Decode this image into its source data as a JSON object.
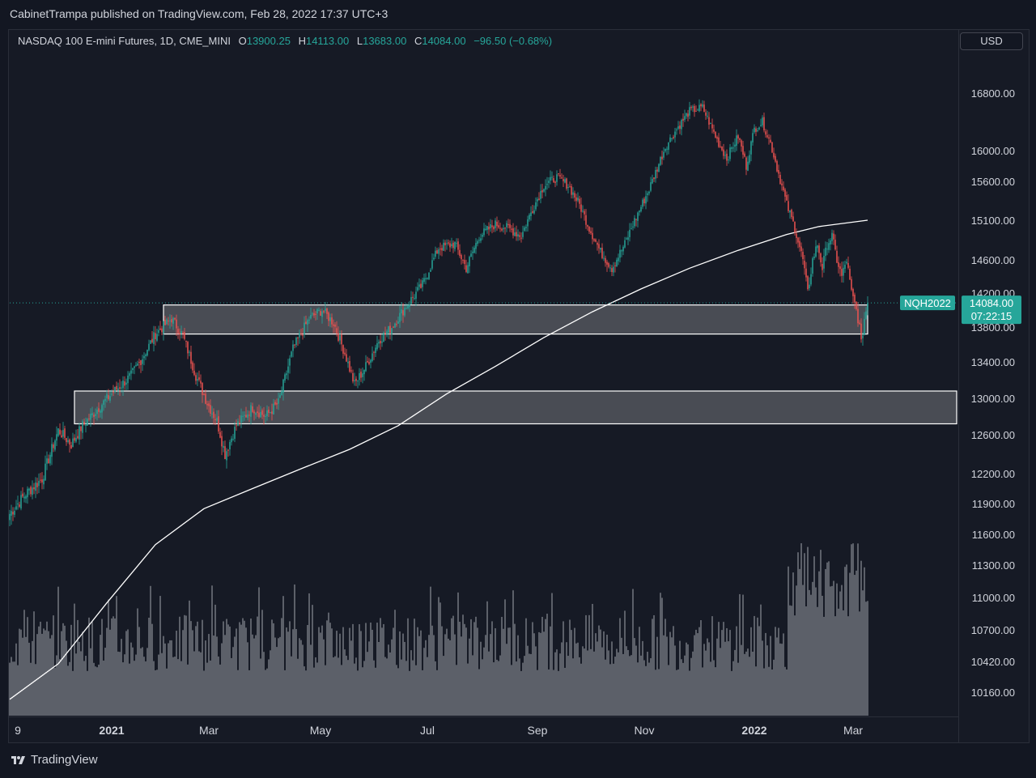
{
  "publisher_line": "CabinetTrampa published on TradingView.com, Feb 28, 2022 17:37 UTC+3",
  "legend": {
    "symbol": "NASDAQ 100 E-mini Futures, 1D, CME_MINI",
    "open_label": "O",
    "open": "13900.25",
    "high_label": "H",
    "high": "14113.00",
    "low_label": "L",
    "low": "13683.00",
    "close_label": "C",
    "close": "14084.00",
    "change": "−96.50 (−0.68%)"
  },
  "currency_button": "USD",
  "brand": "TradingView",
  "price_tag": {
    "ticker": "NQH2022",
    "price": "14084.00",
    "countdown": "07:22:15"
  },
  "colors": {
    "background": "#131722",
    "up": "#26a69a",
    "down": "#ef5350",
    "ma": "#ffffff",
    "zone_fill": "#ffffff",
    "volume": "#b2b5be"
  },
  "chart_data": {
    "type": "candlestick",
    "title": "NASDAQ 100 E-mini Futures, 1D, CME_MINI",
    "y_ticks": [
      "16800.00",
      "16000.00",
      "15600.00",
      "15100.00",
      "14600.00",
      "14200.00",
      "13800.00",
      "13400.00",
      "13000.00",
      "12600.00",
      "12200.00",
      "11900.00",
      "11600.00",
      "11300.00",
      "11000.00",
      "10700.00",
      "10420.00",
      "10160.00"
    ],
    "x_ticks": [
      {
        "label": "9",
        "bold": false
      },
      {
        "label": "2021",
        "bold": true
      },
      {
        "label": "Mar",
        "bold": false
      },
      {
        "label": "May",
        "bold": false
      },
      {
        "label": "Jul",
        "bold": false
      },
      {
        "label": "Sep",
        "bold": false
      },
      {
        "label": "Nov",
        "bold": false
      },
      {
        "label": "2022",
        "bold": true
      },
      {
        "label": "Mar",
        "bold": false
      }
    ],
    "last_price": 14084,
    "keyframes": [
      {
        "i": 0,
        "p": 11800
      },
      {
        "i": 10,
        "p": 12000
      },
      {
        "i": 20,
        "p": 12150
      },
      {
        "i": 30,
        "p": 12650
      },
      {
        "i": 38,
        "p": 12500
      },
      {
        "i": 45,
        "p": 12700
      },
      {
        "i": 55,
        "p": 12900
      },
      {
        "i": 63,
        "p": 13050
      },
      {
        "i": 75,
        "p": 13250
      },
      {
        "i": 82,
        "p": 13450
      },
      {
        "i": 90,
        "p": 13720
      },
      {
        "i": 100,
        "p": 13900
      },
      {
        "i": 107,
        "p": 13700
      },
      {
        "i": 115,
        "p": 13250
      },
      {
        "i": 122,
        "p": 12950
      },
      {
        "i": 128,
        "p": 12750
      },
      {
        "i": 133,
        "p": 12400
      },
      {
        "i": 140,
        "p": 12700
      },
      {
        "i": 150,
        "p": 12900
      },
      {
        "i": 158,
        "p": 12800
      },
      {
        "i": 166,
        "p": 12950
      },
      {
        "i": 175,
        "p": 13550
      },
      {
        "i": 185,
        "p": 13900
      },
      {
        "i": 193,
        "p": 14000
      },
      {
        "i": 200,
        "p": 13850
      },
      {
        "i": 207,
        "p": 13500
      },
      {
        "i": 213,
        "p": 13150
      },
      {
        "i": 220,
        "p": 13350
      },
      {
        "i": 228,
        "p": 13650
      },
      {
        "i": 236,
        "p": 13800
      },
      {
        "i": 245,
        "p": 14050
      },
      {
        "i": 255,
        "p": 14300
      },
      {
        "i": 265,
        "p": 14750
      },
      {
        "i": 275,
        "p": 14800
      },
      {
        "i": 282,
        "p": 14500
      },
      {
        "i": 290,
        "p": 14900
      },
      {
        "i": 300,
        "p": 15050
      },
      {
        "i": 308,
        "p": 15000
      },
      {
        "i": 316,
        "p": 14900
      },
      {
        "i": 322,
        "p": 15200
      },
      {
        "i": 330,
        "p": 15550
      },
      {
        "i": 338,
        "p": 15650
      },
      {
        "i": 345,
        "p": 15550
      },
      {
        "i": 352,
        "p": 15300
      },
      {
        "i": 358,
        "p": 15000
      },
      {
        "i": 365,
        "p": 14700
      },
      {
        "i": 372,
        "p": 14500
      },
      {
        "i": 380,
        "p": 14800
      },
      {
        "i": 385,
        "p": 15050
      },
      {
        "i": 395,
        "p": 15500
      },
      {
        "i": 405,
        "p": 16050
      },
      {
        "i": 412,
        "p": 16300
      },
      {
        "i": 420,
        "p": 16550
      },
      {
        "i": 428,
        "p": 16600
      },
      {
        "i": 432,
        "p": 16400
      },
      {
        "i": 438,
        "p": 16100
      },
      {
        "i": 443,
        "p": 15900
      },
      {
        "i": 450,
        "p": 16200
      },
      {
        "i": 455,
        "p": 15800
      },
      {
        "i": 460,
        "p": 16300
      },
      {
        "i": 465,
        "p": 16400
      },
      {
        "i": 470,
        "p": 16100
      },
      {
        "i": 475,
        "p": 15700
      },
      {
        "i": 480,
        "p": 15300
      },
      {
        "i": 485,
        "p": 15000
      },
      {
        "i": 490,
        "p": 14600
      },
      {
        "i": 493,
        "p": 14200
      },
      {
        "i": 496,
        "p": 14600
      },
      {
        "i": 499,
        "p": 14800
      },
      {
        "i": 502,
        "p": 14500
      },
      {
        "i": 505,
        "p": 14800
      },
      {
        "i": 508,
        "p": 14900
      },
      {
        "i": 511,
        "p": 14600
      },
      {
        "i": 514,
        "p": 14400
      },
      {
        "i": 517,
        "p": 14600
      },
      {
        "i": 520,
        "p": 14200
      },
      {
        "i": 523,
        "p": 14000
      },
      {
        "i": 525,
        "p": 13800
      },
      {
        "i": 526,
        "p": 13600
      },
      {
        "i": 528,
        "p": 13900
      },
      {
        "i": 530,
        "p": 14084
      }
    ],
    "ma_points": [
      {
        "i": 0,
        "p": 10100
      },
      {
        "i": 30,
        "p": 10400
      },
      {
        "i": 60,
        "p": 10950
      },
      {
        "i": 90,
        "p": 11500
      },
      {
        "i": 120,
        "p": 11850
      },
      {
        "i": 150,
        "p": 12050
      },
      {
        "i": 180,
        "p": 12250
      },
      {
        "i": 210,
        "p": 12450
      },
      {
        "i": 240,
        "p": 12700
      },
      {
        "i": 270,
        "p": 13050
      },
      {
        "i": 300,
        "p": 13350
      },
      {
        "i": 330,
        "p": 13680
      },
      {
        "i": 360,
        "p": 13980
      },
      {
        "i": 390,
        "p": 14250
      },
      {
        "i": 420,
        "p": 14500
      },
      {
        "i": 450,
        "p": 14720
      },
      {
        "i": 480,
        "p": 14920
      },
      {
        "i": 500,
        "p": 15020
      },
      {
        "i": 530,
        "p": 15100
      }
    ],
    "zones": [
      {
        "from_i": 95,
        "to_i": 530,
        "top": 14060,
        "bottom": 13720
      },
      {
        "from_i": 40,
        "to_i": 585,
        "top": 13080,
        "bottom": 12720
      }
    ]
  }
}
